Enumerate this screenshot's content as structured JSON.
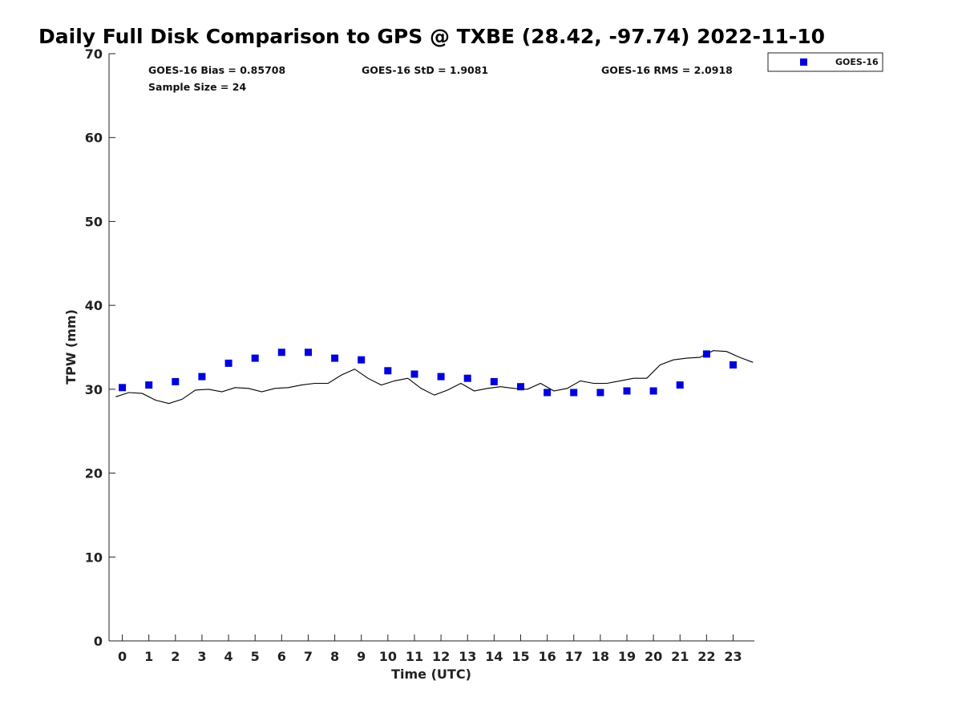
{
  "chart_data": {
    "type": "scatter",
    "title": "Daily Full Disk Comparison to GPS @ TXBE (28.42, -97.74) 2022-11-10",
    "xlabel": "Time (UTC)",
    "ylabel": "TPW (mm)",
    "xlim": [
      -0.5,
      23.8
    ],
    "ylim": [
      0,
      70
    ],
    "x_ticks": [
      0,
      1,
      2,
      3,
      4,
      5,
      6,
      7,
      8,
      9,
      10,
      11,
      12,
      13,
      14,
      15,
      16,
      17,
      18,
      19,
      20,
      21,
      22,
      23
    ],
    "y_ticks": [
      0,
      10,
      20,
      30,
      40,
      50,
      60,
      70
    ],
    "grid": false,
    "legend_position": "top-right",
    "stats": {
      "bias": "GOES-16 Bias = 0.85708",
      "std": "GOES-16 StD = 1.9081",
      "rms": "GOES-16 RMS = 2.0918",
      "sample": "Sample Size = 24"
    },
    "series": [
      {
        "name": "GOES-16",
        "kind": "scatter",
        "marker": "square",
        "color": "#0000dd",
        "x": [
          0,
          1,
          2,
          3,
          4,
          5,
          6,
          7,
          8,
          9,
          10,
          11,
          12,
          13,
          14,
          15,
          16,
          17,
          18,
          19,
          20,
          21,
          22,
          23
        ],
        "y": [
          30.2,
          30.5,
          30.9,
          31.5,
          33.1,
          33.7,
          34.4,
          34.4,
          33.7,
          33.5,
          32.2,
          31.8,
          31.5,
          31.3,
          30.9,
          30.3,
          29.6,
          29.6,
          29.6,
          29.8,
          29.8,
          30.5,
          34.2,
          32.9
        ]
      },
      {
        "kind": "line",
        "color": "#000000",
        "x": [
          -0.25,
          0.25,
          0.75,
          1.25,
          1.75,
          2.25,
          2.75,
          3.25,
          3.75,
          4.25,
          4.75,
          5.25,
          5.75,
          6.25,
          6.75,
          7.25,
          7.75,
          8.25,
          8.75,
          9.25,
          9.75,
          10.25,
          10.75,
          11.25,
          11.75,
          12.25,
          12.75,
          13.25,
          13.75,
          14.25,
          14.75,
          15.25,
          15.75,
          16.25,
          16.75,
          17.25,
          17.75,
          18.25,
          18.75,
          19.25,
          19.75,
          20.25,
          20.75,
          21.25,
          21.75,
          22.25,
          22.75,
          23.25,
          23.75
        ],
        "y": [
          29.1,
          29.6,
          29.5,
          28.7,
          28.3,
          28.8,
          29.9,
          30.0,
          29.7,
          30.2,
          30.1,
          29.7,
          30.1,
          30.2,
          30.5,
          30.7,
          30.7,
          31.7,
          32.4,
          31.3,
          30.5,
          31.0,
          31.3,
          30.1,
          29.3,
          29.9,
          30.7,
          29.8,
          30.1,
          30.3,
          30.1,
          30.0,
          30.7,
          29.8,
          30.1,
          31.0,
          30.7,
          30.7,
          31.0,
          31.3,
          31.3,
          32.9,
          33.5,
          33.7,
          33.8,
          34.6,
          34.5,
          33.8,
          33.2
        ]
      }
    ]
  }
}
